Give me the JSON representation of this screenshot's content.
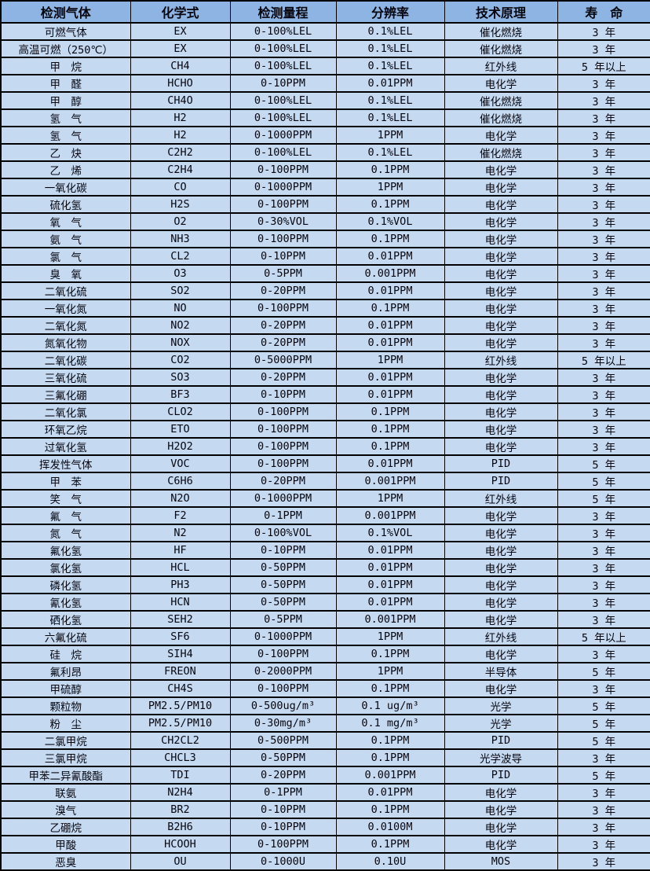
{
  "colors": {
    "header_bg": "#8db4e2",
    "row_bg": "#c5d9f1",
    "grid": "#000000",
    "text": "#06060f"
  },
  "table": {
    "column_keys": [
      "gas",
      "formula",
      "range",
      "resolution",
      "principle",
      "life"
    ],
    "columns": [
      "检测气体",
      "化学式",
      "检测量程",
      "分辨率",
      "技术原理",
      "寿　命"
    ],
    "rows": [
      {
        "gas": "可燃气体",
        "formula": "EX",
        "range": "0-100%LEL",
        "resolution": "0.1%LEL",
        "principle": "催化燃烧",
        "life": "3 年"
      },
      {
        "gas": "高温可燃（250℃）",
        "formula": "EX",
        "range": "0-100%LEL",
        "resolution": "0.1%LEL",
        "principle": "催化燃烧",
        "life": "3 年"
      },
      {
        "gas": "甲　烷",
        "formula": "CH4",
        "range": "0-100%LEL",
        "resolution": "0.1%LEL",
        "principle": "红外线",
        "life": "5 年以上"
      },
      {
        "gas": "甲　醛",
        "formula": "HCHO",
        "range": "0-10PPM",
        "resolution": "0.01PPM",
        "principle": "电化学",
        "life": "3 年"
      },
      {
        "gas": "甲　醇",
        "formula": "CH4O",
        "range": "0-100%LEL",
        "resolution": "0.1%LEL",
        "principle": "催化燃烧",
        "life": "3 年"
      },
      {
        "gas": "氢　气",
        "formula": "H2",
        "range": "0-100%LEL",
        "resolution": "0.1%LEL",
        "principle": "催化燃烧",
        "life": "3 年"
      },
      {
        "gas": "氢　气",
        "formula": "H2",
        "range": "0-1000PPM",
        "resolution": "1PPM",
        "principle": "电化学",
        "life": "3 年"
      },
      {
        "gas": "乙　炔",
        "formula": "C2H2",
        "range": "0-100%LEL",
        "resolution": "0.1%LEL",
        "principle": "催化燃烧",
        "life": "3 年"
      },
      {
        "gas": "乙　烯",
        "formula": "C2H4",
        "range": "0-100PPM",
        "resolution": "0.1PPM",
        "principle": "电化学",
        "life": "3 年"
      },
      {
        "gas": "一氧化碳",
        "formula": "CO",
        "range": "0-1000PPM",
        "resolution": "1PPM",
        "principle": "电化学",
        "life": "3 年"
      },
      {
        "gas": "硫化氢",
        "formula": "H2S",
        "range": "0-100PPM",
        "resolution": "0.1PPM",
        "principle": "电化学",
        "life": "3 年"
      },
      {
        "gas": "氧　气",
        "formula": "O2",
        "range": "0-30%VOL",
        "resolution": "0.1%VOL",
        "principle": "电化学",
        "life": "3 年"
      },
      {
        "gas": "氨　气",
        "formula": "NH3",
        "range": "0-100PPM",
        "resolution": "0.1PPM",
        "principle": "电化学",
        "life": "3 年"
      },
      {
        "gas": "氯　气",
        "formula": "CL2",
        "range": "0-10PPM",
        "resolution": "0.01PPM",
        "principle": "电化学",
        "life": "3 年"
      },
      {
        "gas": "臭　氧",
        "formula": "O3",
        "range": "0-5PPM",
        "resolution": "0.001PPM",
        "principle": "电化学",
        "life": "3 年"
      },
      {
        "gas": "二氧化硫",
        "formula": "SO2",
        "range": "0-20PPM",
        "resolution": "0.01PPM",
        "principle": "电化学",
        "life": "3 年"
      },
      {
        "gas": "一氧化氮",
        "formula": "NO",
        "range": "0-100PPM",
        "resolution": "0.1PPM",
        "principle": "电化学",
        "life": "3 年"
      },
      {
        "gas": "二氧化氮",
        "formula": "NO2",
        "range": "0-20PPM",
        "resolution": "0.01PPM",
        "principle": "电化学",
        "life": "3 年"
      },
      {
        "gas": "氮氧化物",
        "formula": "NOX",
        "range": "0-20PPM",
        "resolution": "0.01PPM",
        "principle": "电化学",
        "life": "3 年"
      },
      {
        "gas": "二氧化碳",
        "formula": "CO2",
        "range": "0-5000PPM",
        "resolution": "1PPM",
        "principle": "红外线",
        "life": "5 年以上"
      },
      {
        "gas": "三氧化硫",
        "formula": "SO3",
        "range": "0-20PPM",
        "resolution": "0.01PPM",
        "principle": "电化学",
        "life": "3 年"
      },
      {
        "gas": "三氟化硼",
        "formula": "BF3",
        "range": "0-10PPM",
        "resolution": "0.01PPM",
        "principle": "电化学",
        "life": "3 年"
      },
      {
        "gas": "二氧化氯",
        "formula": "CLO2",
        "range": "0-100PPM",
        "resolution": "0.1PPM",
        "principle": "电化学",
        "life": "3 年"
      },
      {
        "gas": "环氧乙烷",
        "formula": "ETO",
        "range": "0-100PPM",
        "resolution": "0.1PPM",
        "principle": "电化学",
        "life": "3 年"
      },
      {
        "gas": "过氧化氢",
        "formula": "H2O2",
        "range": "0-100PPM",
        "resolution": "0.1PPM",
        "principle": "电化学",
        "life": "3 年"
      },
      {
        "gas": "挥发性气体",
        "formula": "VOC",
        "range": "0-100PPM",
        "resolution": "0.01PPM",
        "principle": "PID",
        "life": "5 年"
      },
      {
        "gas": "甲　苯",
        "formula": "C6H6",
        "range": "0-20PPM",
        "resolution": "0.001PPM",
        "principle": "PID",
        "life": "5 年"
      },
      {
        "gas": "笑　气",
        "formula": "N2O",
        "range": "0-1000PPM",
        "resolution": "1PPM",
        "principle": "红外线",
        "life": "5 年"
      },
      {
        "gas": "氟　气",
        "formula": "F2",
        "range": "0-1PPM",
        "resolution": "0.001PPM",
        "principle": "电化学",
        "life": "3 年"
      },
      {
        "gas": "氮　气",
        "formula": "N2",
        "range": "0-100%VOL",
        "resolution": "0.1%VOL",
        "principle": "电化学",
        "life": "3 年"
      },
      {
        "gas": "氟化氢",
        "formula": "HF",
        "range": "0-10PPM",
        "resolution": "0.01PPM",
        "principle": "电化学",
        "life": "3 年"
      },
      {
        "gas": "氯化氢",
        "formula": "HCL",
        "range": "0-50PPM",
        "resolution": "0.01PPM",
        "principle": "电化学",
        "life": "3 年"
      },
      {
        "gas": "磷化氢",
        "formula": "PH3",
        "range": "0-50PPM",
        "resolution": "0.01PPM",
        "principle": "电化学",
        "life": "3 年"
      },
      {
        "gas": "氰化氢",
        "formula": "HCN",
        "range": "0-50PPM",
        "resolution": "0.01PPM",
        "principle": "电化学",
        "life": "3 年"
      },
      {
        "gas": "硒化氢",
        "formula": "SEH2",
        "range": "0-5PPM",
        "resolution": "0.001PPM",
        "principle": "电化学",
        "life": "3 年"
      },
      {
        "gas": "六氟化硫",
        "formula": "SF6",
        "range": "0-1000PPM",
        "resolution": "1PPM",
        "principle": "红外线",
        "life": "5 年以上"
      },
      {
        "gas": "硅　烷",
        "formula": "SIH4",
        "range": "0-100PPM",
        "resolution": "0.1PPM",
        "principle": "电化学",
        "life": "3 年"
      },
      {
        "gas": "氟利昂",
        "formula": "FREON",
        "range": "0-2000PPM",
        "resolution": "1PPM",
        "principle": "半导体",
        "life": "5 年"
      },
      {
        "gas": "甲硫醇",
        "formula": "CH4S",
        "range": "0-100PPM",
        "resolution": "0.1PPM",
        "principle": "电化学",
        "life": "3 年"
      },
      {
        "gas": "颗粒物",
        "formula": "PM2.5/PM10",
        "range": "0-500ug/m³",
        "resolution": "0.1 ug/m³",
        "principle": "光学",
        "life": "5 年"
      },
      {
        "gas": "粉　尘",
        "formula": "PM2.5/PM10",
        "range": "0-30mg/m³",
        "resolution": "0.1 mg/m³",
        "principle": "光学",
        "life": "5 年"
      },
      {
        "gas": "二氯甲烷",
        "formula": "CH2CL2",
        "range": "0-500PPM",
        "resolution": "0.1PPM",
        "principle": "PID",
        "life": "5 年"
      },
      {
        "gas": "三氯甲烷",
        "formula": "CHCL3",
        "range": "0-50PPM",
        "resolution": "0.1PPM",
        "principle": "光学波导",
        "life": "3 年"
      },
      {
        "gas": "甲苯二异氰酸酯",
        "formula": "TDI",
        "range": "0-20PPM",
        "resolution": "0.001PPM",
        "principle": "PID",
        "life": "5 年"
      },
      {
        "gas": "联氨",
        "formula": "N2H4",
        "range": "0-1PPM",
        "resolution": "0.01PPM",
        "principle": "电化学",
        "life": "3 年"
      },
      {
        "gas": "溴气",
        "formula": "BR2",
        "range": "0-10PPM",
        "resolution": "0.1PPM",
        "principle": "电化学",
        "life": "3 年"
      },
      {
        "gas": "乙硼烷",
        "formula": "B2H6",
        "range": "0-10PPM",
        "resolution": "0.0100M",
        "principle": "电化学",
        "life": "3 年"
      },
      {
        "gas": "甲酸",
        "formula": "HCOOH",
        "range": "0-100PPM",
        "resolution": "0.1PPM",
        "principle": "电化学",
        "life": "3 年"
      },
      {
        "gas": "恶臭",
        "formula": "OU",
        "range": "0-1000U",
        "resolution": "0.10U",
        "principle": "MOS",
        "life": "3 年"
      }
    ]
  }
}
